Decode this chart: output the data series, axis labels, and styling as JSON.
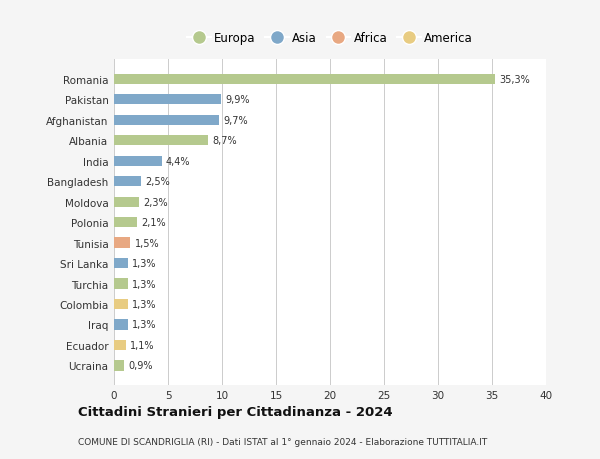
{
  "countries": [
    "Romania",
    "Pakistan",
    "Afghanistan",
    "Albania",
    "India",
    "Bangladesh",
    "Moldova",
    "Polonia",
    "Tunisia",
    "Sri Lanka",
    "Turchia",
    "Colombia",
    "Iraq",
    "Ecuador",
    "Ucraina"
  ],
  "values": [
    35.3,
    9.9,
    9.7,
    8.7,
    4.4,
    2.5,
    2.3,
    2.1,
    1.5,
    1.3,
    1.3,
    1.3,
    1.3,
    1.1,
    0.9
  ],
  "labels": [
    "35,3%",
    "9,9%",
    "9,7%",
    "8,7%",
    "4,4%",
    "2,5%",
    "2,3%",
    "2,1%",
    "1,5%",
    "1,3%",
    "1,3%",
    "1,3%",
    "1,3%",
    "1,1%",
    "0,9%"
  ],
  "colors": [
    "#b5c98e",
    "#7fa8c9",
    "#7fa8c9",
    "#b5c98e",
    "#7fa8c9",
    "#7fa8c9",
    "#b5c98e",
    "#b5c98e",
    "#e8a882",
    "#7fa8c9",
    "#b5c98e",
    "#e8cc82",
    "#7fa8c9",
    "#e8cc82",
    "#b5c98e"
  ],
  "legend_labels": [
    "Europa",
    "Asia",
    "Africa",
    "America"
  ],
  "legend_colors": [
    "#b5c98e",
    "#7fa8c9",
    "#e8a882",
    "#e8cc82"
  ],
  "title": "Cittadini Stranieri per Cittadinanza - 2024",
  "subtitle": "COMUNE DI SCANDRIGLIA (RI) - Dati ISTAT al 1° gennaio 2024 - Elaborazione TUTTITALIA.IT",
  "xlim": [
    0,
    40
  ],
  "xticks": [
    0,
    5,
    10,
    15,
    20,
    25,
    30,
    35,
    40
  ],
  "bg_color": "#f5f5f5",
  "bar_bg_color": "#ffffff"
}
